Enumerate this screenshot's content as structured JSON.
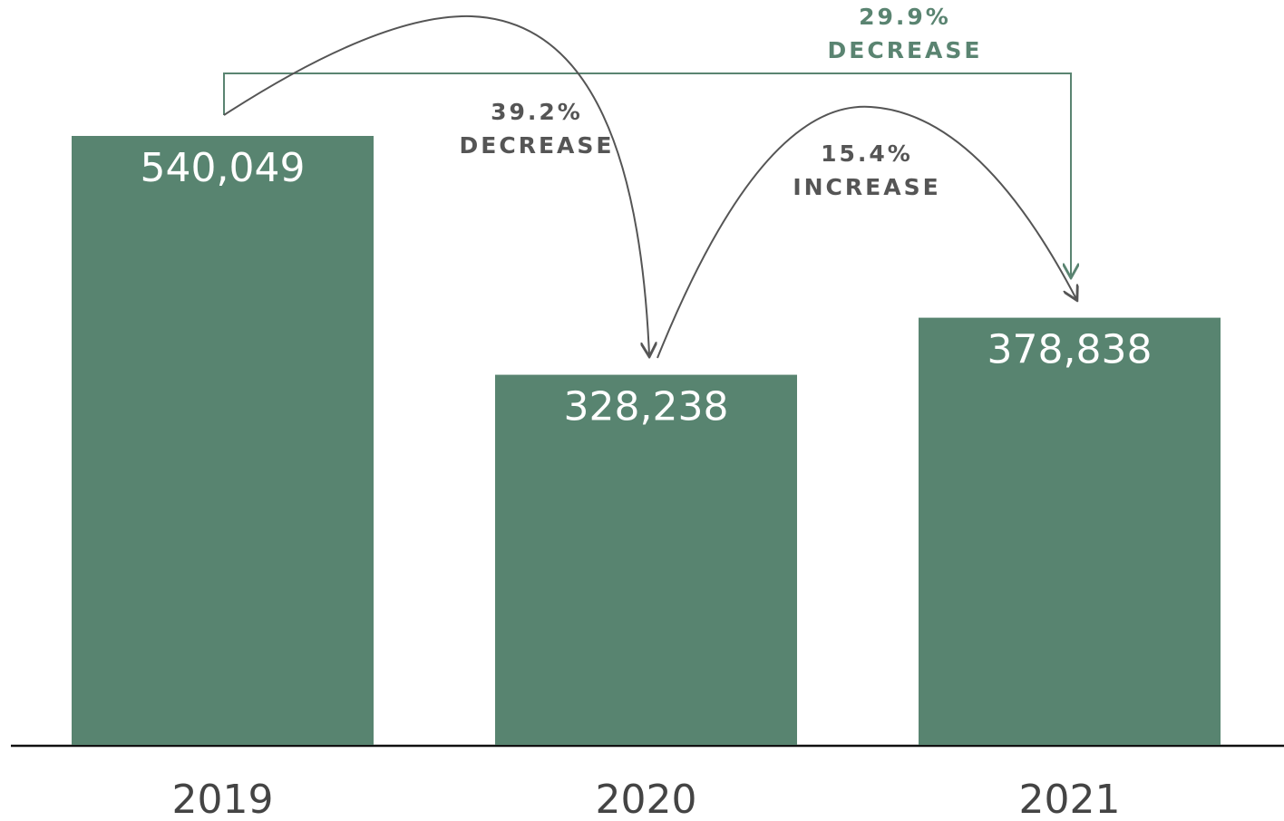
{
  "chart_data": {
    "type": "bar",
    "categories": [
      "2019",
      "2020",
      "2021"
    ],
    "values": [
      540049,
      328238,
      378838
    ],
    "value_labels": [
      "540,049",
      "328,238",
      "378,838"
    ],
    "color": "#588470",
    "annotations": [
      {
        "percent": "39.2%",
        "change": "DECREASE",
        "color": "#555555"
      },
      {
        "percent": "15.4%",
        "change": "INCREASE",
        "color": "#555555"
      },
      {
        "percent": "29.9%",
        "change": "DECREASE",
        "color": "#5a8471"
      }
    ]
  }
}
